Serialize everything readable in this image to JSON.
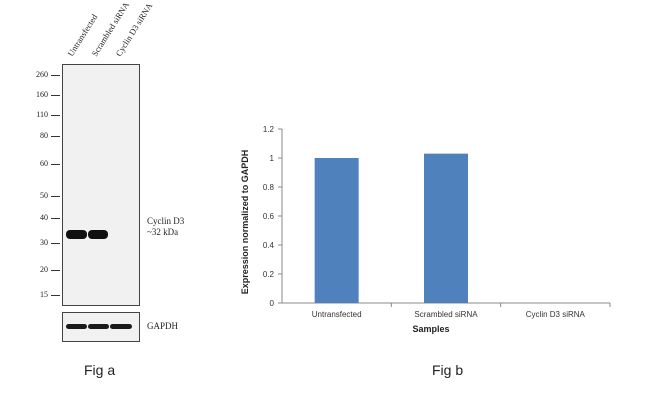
{
  "figure_a": {
    "caption": "Fig a",
    "lane_labels": [
      "Untransfected",
      "Scrambled siRNA",
      "Cyclin D3 siRNA"
    ],
    "mw_markers": [
      "260",
      "160",
      "110",
      "80",
      "60",
      "50",
      "40",
      "30",
      "20",
      "15"
    ],
    "band_label_line1": "Cyclin D3",
    "band_label_line2": "~32 kDa",
    "loading_control_label": "GAPDH",
    "band_color": "#101010",
    "panel_color": "#f1f1f1"
  },
  "figure_b": {
    "caption": "Fig b"
  },
  "chart_data": {
    "type": "bar",
    "categories": [
      "Untransfected",
      "Scrambled siRNA",
      "Cyclin D3 siRNA"
    ],
    "values": [
      1.0,
      1.03,
      0
    ],
    "title": "",
    "xlabel": "Samples",
    "ylabel": "Expression  normalized to GAPDH",
    "ylim": [
      0,
      1.2
    ],
    "yticks": [
      "0",
      "0.2",
      "0.4",
      "0.6",
      "0.8",
      "1",
      "1.2"
    ],
    "grid": false,
    "bar_color": "#4f81bd"
  }
}
